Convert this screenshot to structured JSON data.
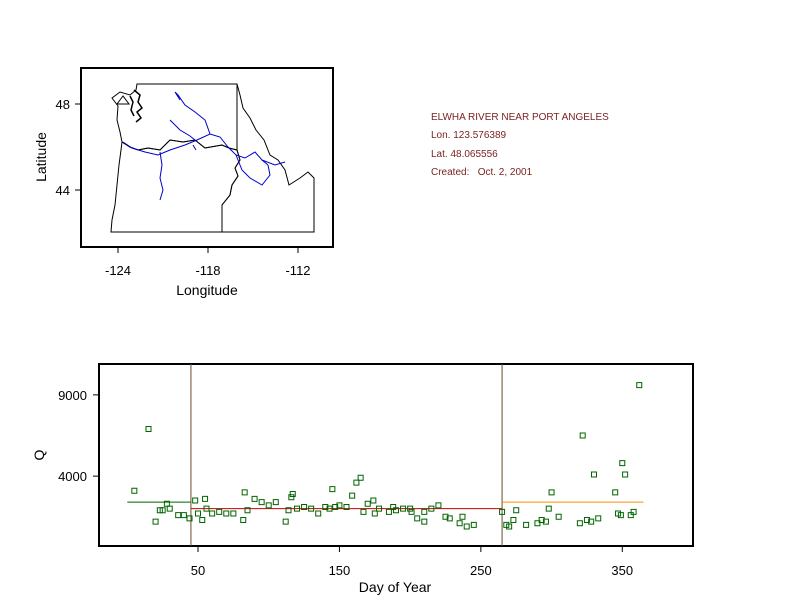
{
  "station": {
    "title": "ELWHA RIVER NEAR PORT ANGELES",
    "lon": "Lon. 123.576389",
    "lat": "Lat. 48.065556",
    "created": "Created:   Oct. 2, 2001"
  },
  "map": {
    "xlabel": "Longitude",
    "ylabel": "Latitude",
    "xticks": [
      "-124",
      "-118",
      "-112"
    ],
    "yticks": [
      "48",
      "44"
    ],
    "xlim": [
      -126.3,
      -109.5
    ],
    "ylim": [
      41.3,
      49.6
    ],
    "station_marker": {
      "lon": -123.58,
      "lat": 48.07
    },
    "colors": {
      "border": "#000000",
      "rivers": "#0000cc",
      "marker": "#000000"
    }
  },
  "chart_data": {
    "type": "scatter",
    "xlabel": "Day of Year",
    "ylabel": "Q",
    "xlim": [
      -20,
      400
    ],
    "ylim": [
      -300,
      10900
    ],
    "xticks": [
      50,
      150,
      250,
      350
    ],
    "yticks": [
      4000,
      9000
    ],
    "vlines": [
      45,
      265
    ],
    "segments": [
      {
        "x0": 0,
        "x1": 45,
        "y": 2400,
        "color": "#006400"
      },
      {
        "x0": 45,
        "x1": 265,
        "y": 2000,
        "color": "#cc0000"
      },
      {
        "x0": 265,
        "x1": 365,
        "y": 2400,
        "color": "#ff8c00"
      }
    ],
    "marker_color": "#006400",
    "points": [
      [
        5,
        3100
      ],
      [
        15,
        6900
      ],
      [
        20,
        1200
      ],
      [
        23,
        1900
      ],
      [
        25,
        1900
      ],
      [
        28,
        2300
      ],
      [
        30,
        2000
      ],
      [
        36,
        1600
      ],
      [
        40,
        1600
      ],
      [
        44,
        1400
      ],
      [
        48,
        2500
      ],
      [
        50,
        1700
      ],
      [
        53,
        1300
      ],
      [
        55,
        2600
      ],
      [
        56,
        2000
      ],
      [
        60,
        1700
      ],
      [
        65,
        1800
      ],
      [
        70,
        1700
      ],
      [
        75,
        1700
      ],
      [
        82,
        1300
      ],
      [
        83,
        3000
      ],
      [
        85,
        1900
      ],
      [
        90,
        2600
      ],
      [
        95,
        2400
      ],
      [
        100,
        2200
      ],
      [
        105,
        2400
      ],
      [
        112,
        1200
      ],
      [
        114,
        1900
      ],
      [
        116,
        2700
      ],
      [
        117,
        2900
      ],
      [
        120,
        2000
      ],
      [
        125,
        2100
      ],
      [
        130,
        2000
      ],
      [
        135,
        1700
      ],
      [
        140,
        2100
      ],
      [
        143,
        2000
      ],
      [
        145,
        3200
      ],
      [
        147,
        2100
      ],
      [
        150,
        2200
      ],
      [
        155,
        2100
      ],
      [
        159,
        2800
      ],
      [
        162,
        3600
      ],
      [
        165,
        3900
      ],
      [
        167,
        1800
      ],
      [
        170,
        2300
      ],
      [
        174,
        2500
      ],
      [
        175,
        1700
      ],
      [
        178,
        2000
      ],
      [
        185,
        1800
      ],
      [
        188,
        2100
      ],
      [
        190,
        1900
      ],
      [
        195,
        2000
      ],
      [
        200,
        2000
      ],
      [
        201,
        1800
      ],
      [
        205,
        1400
      ],
      [
        210,
        1800
      ],
      [
        210,
        1200
      ],
      [
        215,
        2000
      ],
      [
        220,
        2200
      ],
      [
        225,
        1500
      ],
      [
        228,
        1400
      ],
      [
        235,
        1100
      ],
      [
        237,
        1500
      ],
      [
        240,
        900
      ],
      [
        245,
        1000
      ],
      [
        265,
        1800
      ],
      [
        268,
        1000
      ],
      [
        270,
        900
      ],
      [
        273,
        1300
      ],
      [
        275,
        1900
      ],
      [
        282,
        1000
      ],
      [
        290,
        1100
      ],
      [
        293,
        1300
      ],
      [
        296,
        1200
      ],
      [
        298,
        2000
      ],
      [
        300,
        3000
      ],
      [
        305,
        1500
      ],
      [
        320,
        1100
      ],
      [
        322,
        6500
      ],
      [
        325,
        1300
      ],
      [
        328,
        1200
      ],
      [
        330,
        4100
      ],
      [
        333,
        1400
      ],
      [
        345,
        3000
      ],
      [
        347,
        1700
      ],
      [
        349,
        1600
      ],
      [
        350,
        4800
      ],
      [
        352,
        4100
      ],
      [
        356,
        1600
      ],
      [
        358,
        1800
      ],
      [
        362,
        9600
      ]
    ]
  }
}
